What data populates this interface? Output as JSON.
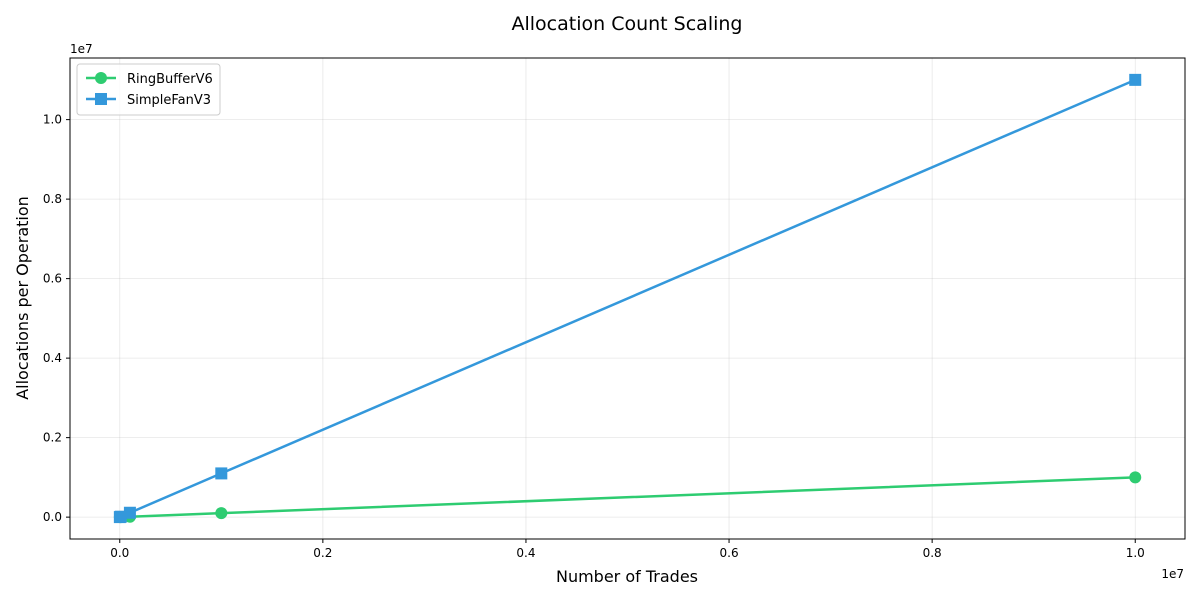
{
  "chart_data": {
    "type": "line",
    "title": "Allocation Count Scaling",
    "xlabel": "Number of Trades",
    "ylabel": "Allocations per Operation",
    "x_offset_label": "1e7",
    "y_offset_label": "1e7",
    "xlim": [
      -490000,
      10490000
    ],
    "ylim": [
      -550000,
      11550000
    ],
    "x_ticks": [
      0,
      2000000,
      4000000,
      6000000,
      8000000,
      10000000
    ],
    "x_tick_labels": [
      "0.0",
      "0.2",
      "0.4",
      "0.6",
      "0.8",
      "1.0"
    ],
    "y_ticks": [
      0,
      2000000,
      4000000,
      6000000,
      8000000,
      10000000
    ],
    "y_tick_labels": [
      "0.0",
      "0.2",
      "0.4",
      "0.6",
      "0.8",
      "1.0"
    ],
    "grid": true,
    "legend_position": "upper-left",
    "series": [
      {
        "name": "RingBufferV6",
        "color": "#2ecc71",
        "marker": "circle",
        "x": [
          1000,
          10000,
          100000,
          1000000,
          10000000
        ],
        "y": [
          100,
          1000,
          10000,
          100000,
          1000000
        ]
      },
      {
        "name": "SimpleFanV3",
        "color": "#3498db",
        "marker": "square",
        "x": [
          1000,
          10000,
          100000,
          1000000,
          10000000
        ],
        "y": [
          1100,
          11000,
          110000,
          1100000,
          11000000
        ]
      }
    ]
  }
}
